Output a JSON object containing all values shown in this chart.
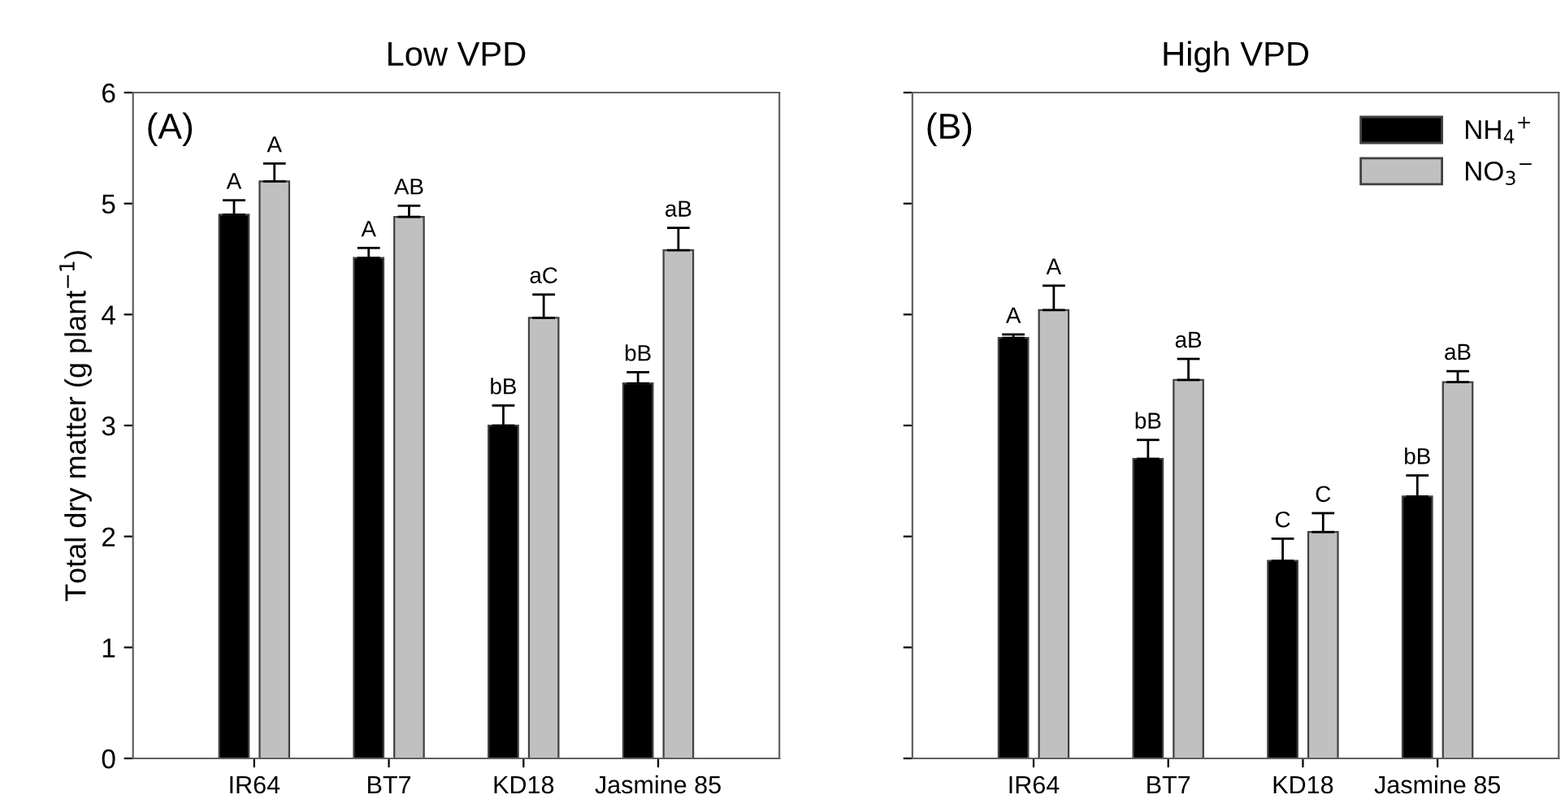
{
  "chart_data": [
    {
      "type": "bar",
      "title": "Low VPD",
      "ylabel": "Total dry matter (g plant$^{−1}$)",
      "annotations": [
        "(A)"
      ],
      "categories": [
        "IR64",
        "BT7",
        "KD18",
        "Jasmine 85"
      ],
      "series": [
        {
          "color": "#000000",
          "values": [
            4.9,
            4.51,
            3.0,
            3.38
          ],
          "errors": [
            0.13,
            0.09,
            0.18,
            0.1
          ],
          "value_labels": [
            "A",
            "A",
            "bB",
            "bB"
          ]
        },
        {
          "color": "#c0c0c0",
          "values": [
            5.2,
            4.88,
            3.97,
            4.58
          ],
          "errors": [
            0.16,
            0.1,
            0.21,
            0.2
          ],
          "value_labels": [
            "A",
            "AB",
            "aC",
            "aB"
          ]
        }
      ],
      "ylim": [
        0,
        6
      ],
      "yticks": [
        0,
        1,
        2,
        3,
        4,
        5,
        6
      ],
      "grid": false,
      "legend": false
    },
    {
      "type": "bar",
      "title": "High VPD",
      "annotations": [
        "(B)"
      ],
      "categories": [
        "IR64",
        "BT7",
        "KD18",
        "Jasmine 85"
      ],
      "series": [
        {
          "name": "NH$_{4}$$^{+}$",
          "color": "#000000",
          "values": [
            3.79,
            2.7,
            1.78,
            2.36
          ],
          "errors": [
            0.03,
            0.17,
            0.2,
            0.19
          ],
          "value_labels": [
            "A",
            "bB",
            "C",
            "bB"
          ]
        },
        {
          "name": "NO$_{3}$$^{−}$",
          "color": "#c0c0c0",
          "values": [
            4.04,
            3.41,
            2.04,
            3.39
          ],
          "errors": [
            0.22,
            0.19,
            0.17,
            0.1
          ],
          "value_labels": [
            "A",
            "aB",
            "C",
            "aB"
          ]
        }
      ],
      "ylim": [
        0,
        6
      ],
      "yticks": [
        0,
        1,
        2,
        3,
        4,
        5,
        6
      ],
      "grid": false,
      "legend": "top right",
      "tick_labels": "x"
    }
  ]
}
